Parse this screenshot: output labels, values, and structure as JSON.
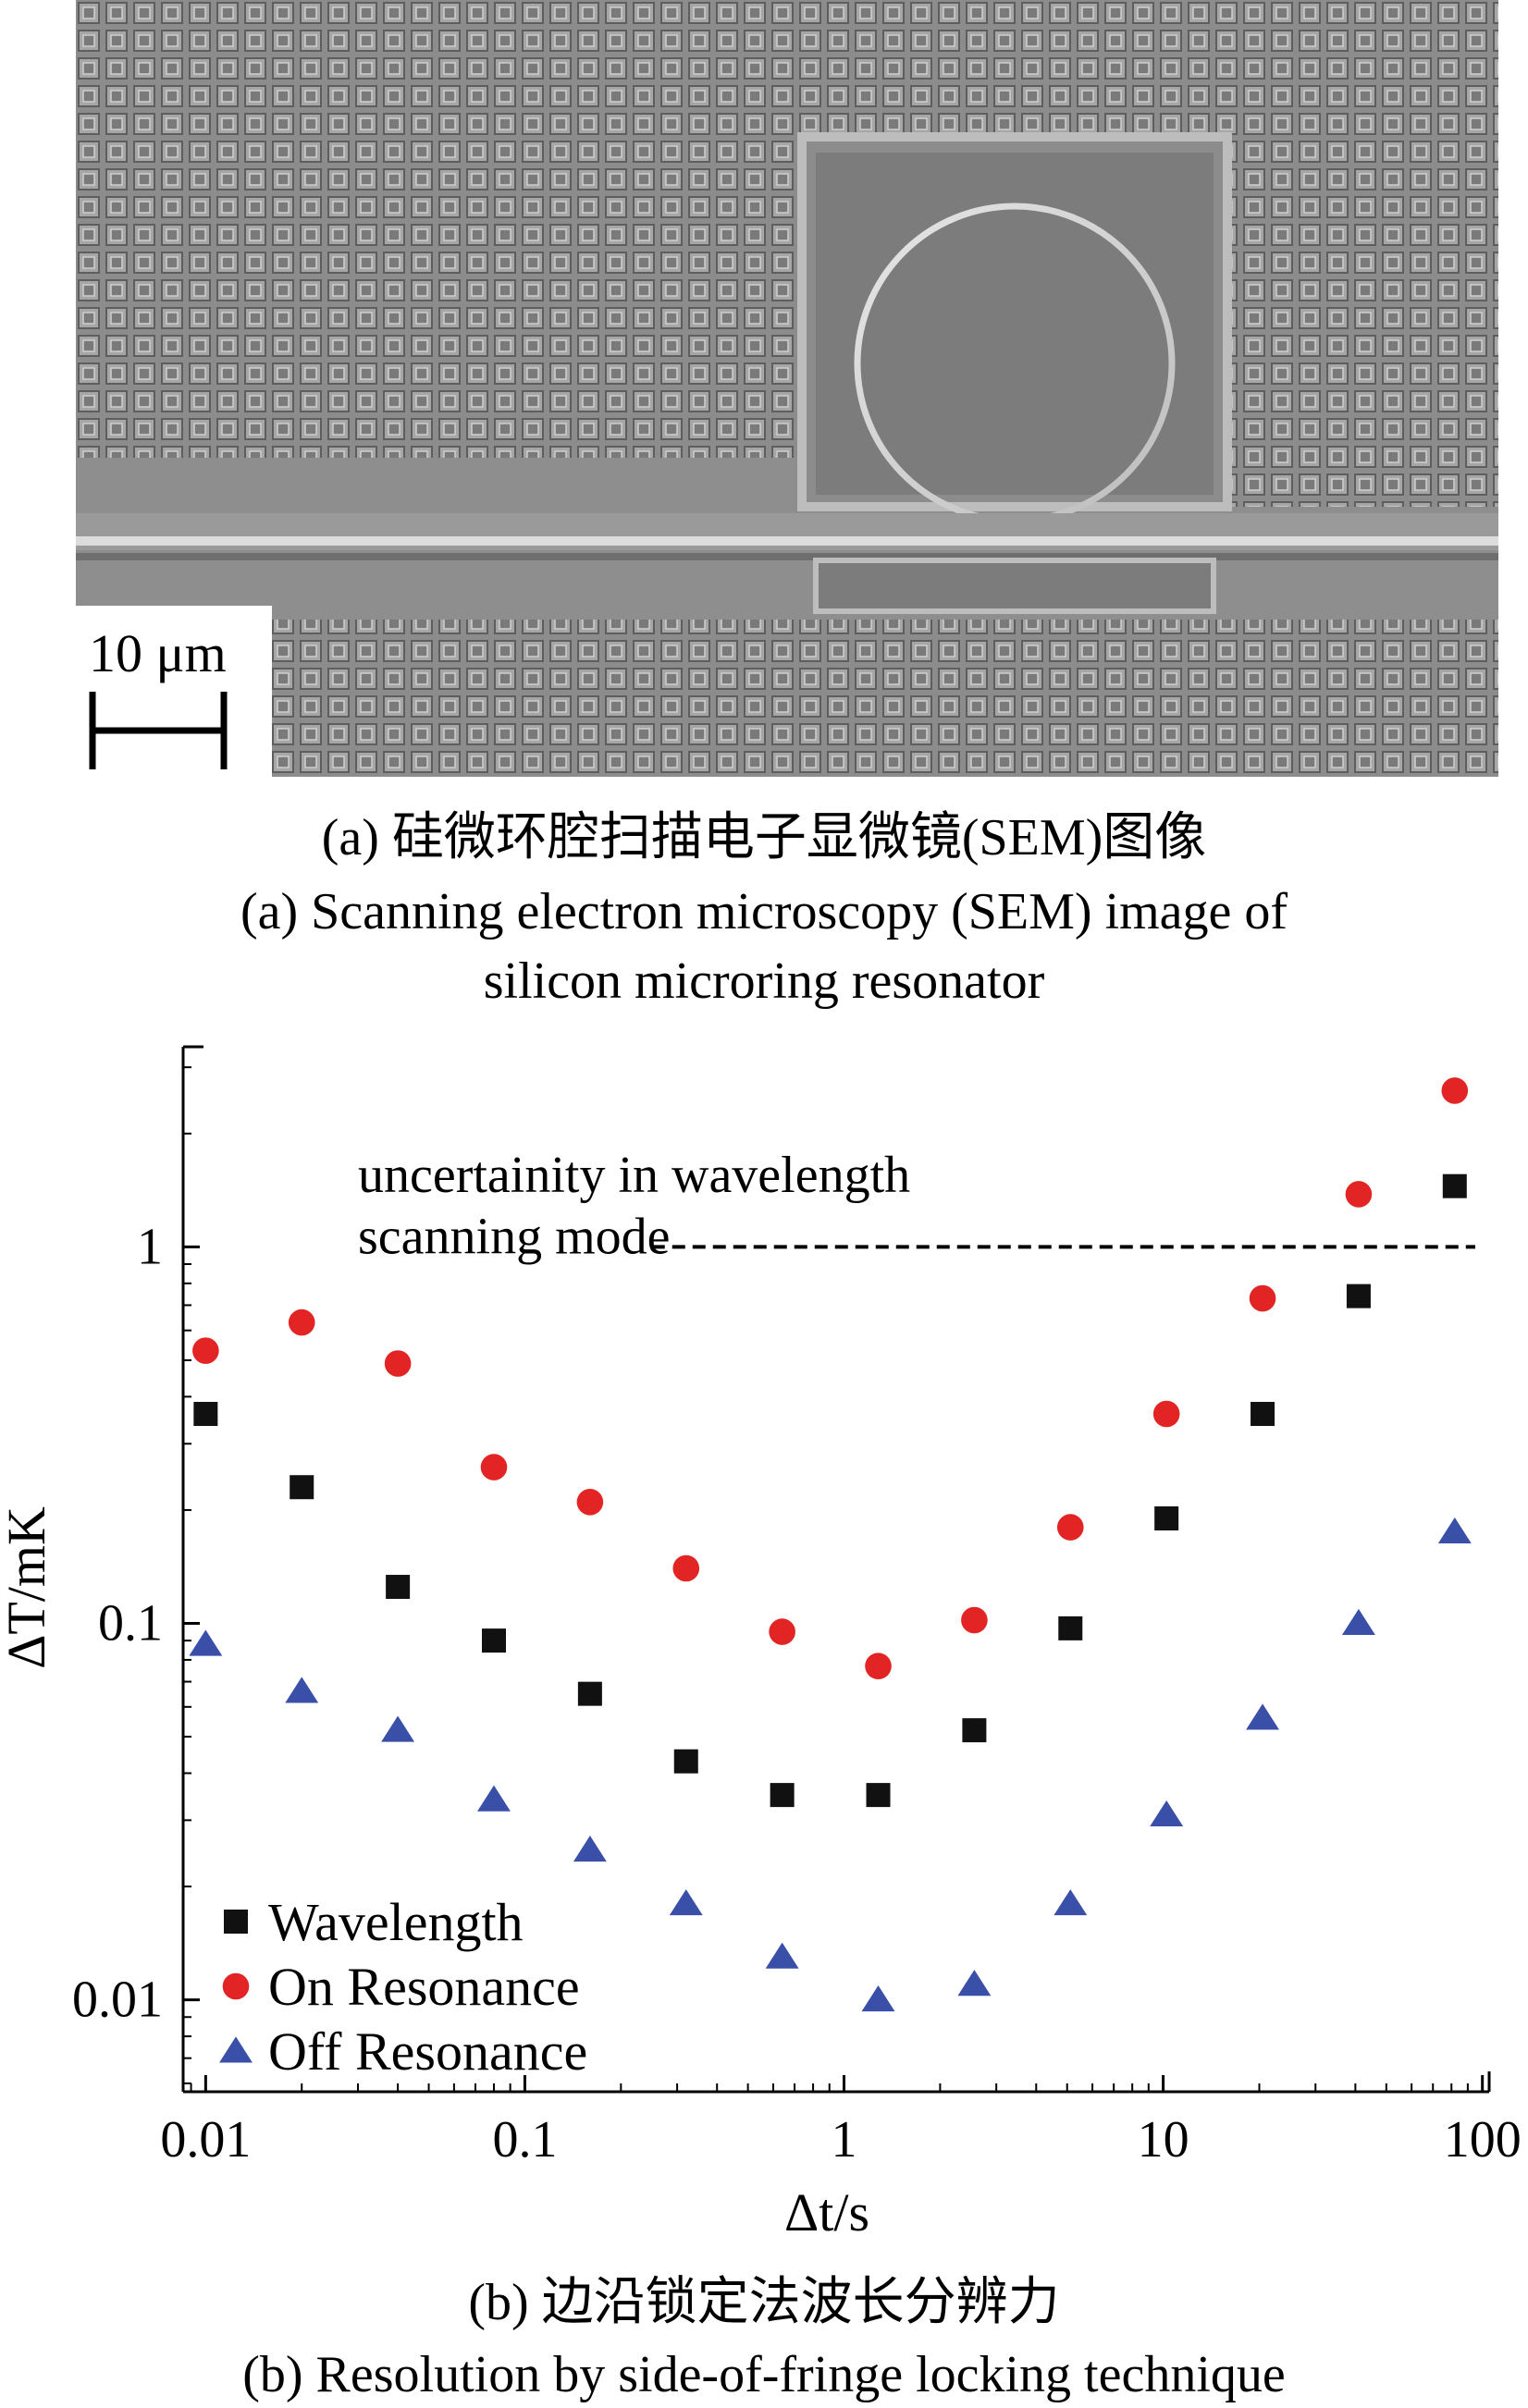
{
  "panel_a": {
    "scale_bar_label": "10 μm",
    "caption_cn": "(a) 硅微环腔扫描电子显微镜(SEM)图像",
    "caption_en_line1": "(a) Scanning electron microscopy (SEM) image of",
    "caption_en_line2": "silicon microring resonator"
  },
  "panel_b": {
    "caption_cn": "(b) 边沿锁定法波长分辨力",
    "caption_en": "(b) Resolution by side-of-fringe locking technique"
  },
  "chart_data": {
    "type": "scatter",
    "xscale": "log",
    "yscale": "log",
    "xlabel": "Δt/s",
    "ylabel": "ΔT/mK",
    "xlim": [
      0.0085,
      105
    ],
    "ylim": [
      0.0057,
      3.4
    ],
    "xticks": [
      0.01,
      0.1,
      1,
      10,
      100
    ],
    "xtick_labels": [
      "0.01",
      "0.1",
      "1",
      "10",
      "100"
    ],
    "yticks": [
      0.01,
      0.1,
      1
    ],
    "ytick_labels": [
      "0.01",
      "0.1",
      "1"
    ],
    "legend_position": "bottom-left",
    "series": [
      {
        "name": "Wavelength",
        "marker": "square",
        "color": "#111111",
        "x": [
          0.01,
          0.02,
          0.04,
          0.08,
          0.16,
          0.32,
          0.64,
          1.28,
          2.56,
          5.12,
          10.24,
          20.48,
          40.96,
          81.92
        ],
        "y": [
          0.36,
          0.23,
          0.125,
          0.09,
          0.065,
          0.043,
          0.035,
          0.035,
          0.052,
          0.097,
          0.19,
          0.36,
          0.74,
          1.45
        ]
      },
      {
        "name": "On Resonance",
        "marker": "circle",
        "color": "#e32424",
        "x": [
          0.01,
          0.02,
          0.04,
          0.08,
          0.16,
          0.32,
          0.64,
          1.28,
          2.56,
          5.12,
          10.24,
          20.48,
          40.96,
          81.92
        ],
        "y": [
          0.53,
          0.63,
          0.49,
          0.26,
          0.21,
          0.14,
          0.095,
          0.077,
          0.102,
          0.18,
          0.36,
          0.73,
          1.38,
          2.6
        ]
      },
      {
        "name": "Off Resonance",
        "marker": "triangle",
        "color": "#3a4fa8",
        "x": [
          0.01,
          0.02,
          0.04,
          0.08,
          0.16,
          0.32,
          0.64,
          1.28,
          2.56,
          5.12,
          10.24,
          20.48,
          40.96,
          81.92
        ],
        "y": [
          0.088,
          0.066,
          0.052,
          0.034,
          0.025,
          0.018,
          0.013,
          0.01,
          0.011,
          0.018,
          0.031,
          0.056,
          0.1,
          0.175
        ]
      }
    ],
    "reference_line": {
      "y": 1,
      "x_start": 0.25,
      "x_end": 95,
      "style": "dashed"
    },
    "annotations": [
      {
        "text": "uncertainity in wavelength",
        "x": 0.03,
        "y": 1.4
      },
      {
        "text": "scanning mode",
        "x": 0.03,
        "y": 0.96
      }
    ]
  },
  "colors": {
    "sem_background": "#8e8e8e",
    "sem_pattern_dark": "#6a6a6a",
    "sem_pattern_light": "#c4c4c4"
  }
}
